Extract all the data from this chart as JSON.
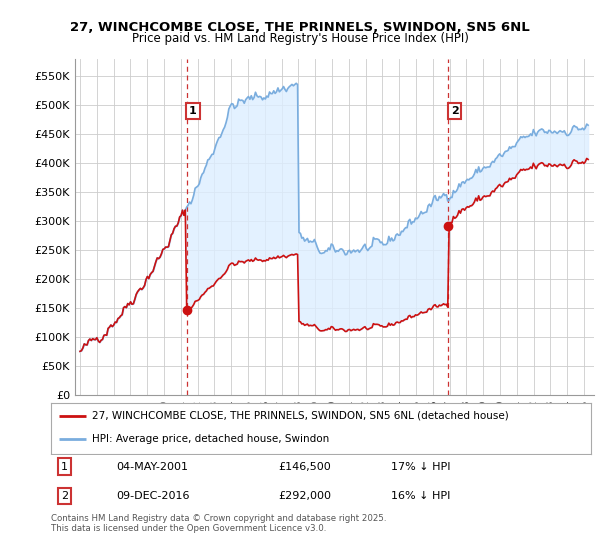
{
  "title1": "27, WINCHCOMBE CLOSE, THE PRINNELS, SWINDON, SN5 6NL",
  "title2": "Price paid vs. HM Land Registry's House Price Index (HPI)",
  "ylabel_ticks": [
    "£0",
    "£50K",
    "£100K",
    "£150K",
    "£200K",
    "£250K",
    "£300K",
    "£350K",
    "£400K",
    "£450K",
    "£500K",
    "£550K"
  ],
  "ytick_values": [
    0,
    50000,
    100000,
    150000,
    200000,
    250000,
    300000,
    350000,
    400000,
    450000,
    500000,
    550000
  ],
  "ylim": [
    0,
    580000
  ],
  "hpi_color": "#7aadde",
  "price_color": "#cc1111",
  "fill_color": "#ddeeff",
  "dashed_color": "#cc3333",
  "marker1_year": 2001.34,
  "marker1_price": 146500,
  "marker2_year": 2016.93,
  "marker2_price": 292000,
  "legend_label1": "27, WINCHCOMBE CLOSE, THE PRINNELS, SWINDON, SN5 6NL (detached house)",
  "legend_label2": "HPI: Average price, detached house, Swindon",
  "table_row1": [
    "1",
    "04-MAY-2001",
    "£146,500",
    "17% ↓ HPI"
  ],
  "table_row2": [
    "2",
    "09-DEC-2016",
    "£292,000",
    "16% ↓ HPI"
  ],
  "footer": "Contains HM Land Registry data © Crown copyright and database right 2025.\nThis data is licensed under the Open Government Licence v3.0.",
  "background_color": "#ffffff",
  "grid_color": "#cccccc"
}
